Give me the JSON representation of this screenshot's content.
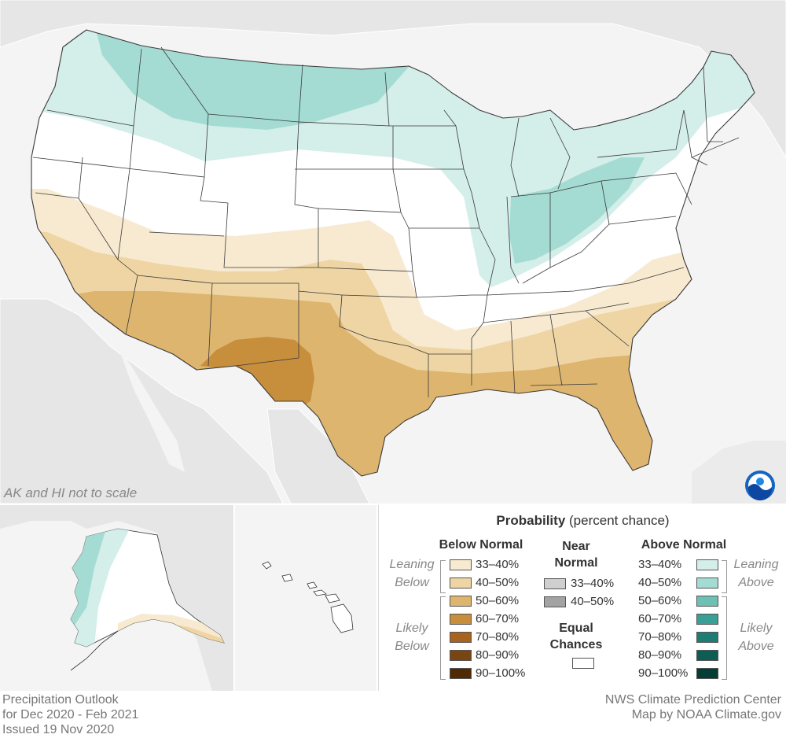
{
  "map": {
    "scale_note": "AK and HI not to scale"
  },
  "legend": {
    "title_bold": "Probability",
    "title_rest": " (percent chance)",
    "below_normal": {
      "header": "Below Normal",
      "leaning_label": [
        "Leaning",
        "Below"
      ],
      "likely_label": [
        "Likely",
        "Below"
      ],
      "items": [
        {
          "label": "33–40%",
          "color": "#f7ead0"
        },
        {
          "label": "40–50%",
          "color": "#eed5a3"
        },
        {
          "label": "50–60%",
          "color": "#ddb56f"
        },
        {
          "label": "60–70%",
          "color": "#c78e3c"
        },
        {
          "label": "70–80%",
          "color": "#a8641e"
        },
        {
          "label": "80–90%",
          "color": "#7a4510"
        },
        {
          "label": "90–100%",
          "color": "#4f2a05"
        }
      ]
    },
    "near_normal": {
      "header": [
        "Near",
        "Normal"
      ],
      "items": [
        {
          "label": "33–40%",
          "color": "#cfcfcf"
        },
        {
          "label": "40–50%",
          "color": "#a3a3a3"
        }
      ]
    },
    "equal_chances": {
      "header": [
        "Equal",
        "Chances"
      ],
      "color": "#ffffff"
    },
    "above_normal": {
      "header": "Above Normal",
      "leaning_label": [
        "Leaning",
        "Above"
      ],
      "likely_label": [
        "Likely",
        "Above"
      ],
      "items": [
        {
          "label": "33–40%",
          "color": "#d4eeea"
        },
        {
          "label": "40–50%",
          "color": "#a4dcd3"
        },
        {
          "label": "50–60%",
          "color": "#6cc0b4"
        },
        {
          "label": "60–70%",
          "color": "#3a9f94"
        },
        {
          "label": "70–80%",
          "color": "#1d7d72"
        },
        {
          "label": "80–90%",
          "color": "#0c5e54"
        },
        {
          "label": "90–100%",
          "color": "#033d35"
        }
      ]
    }
  },
  "footer": {
    "left": [
      "Precipitation Outlook",
      "for Dec 2020 - Feb 2021",
      "Issued 19 Nov 2020"
    ],
    "right": [
      "NWS Climate Prediction Center",
      "Map by NOAA Climate.gov"
    ]
  },
  "colors": {
    "background_land": "#e6e6e6",
    "water": "#f4f4f4",
    "state_lines": "#333333"
  }
}
